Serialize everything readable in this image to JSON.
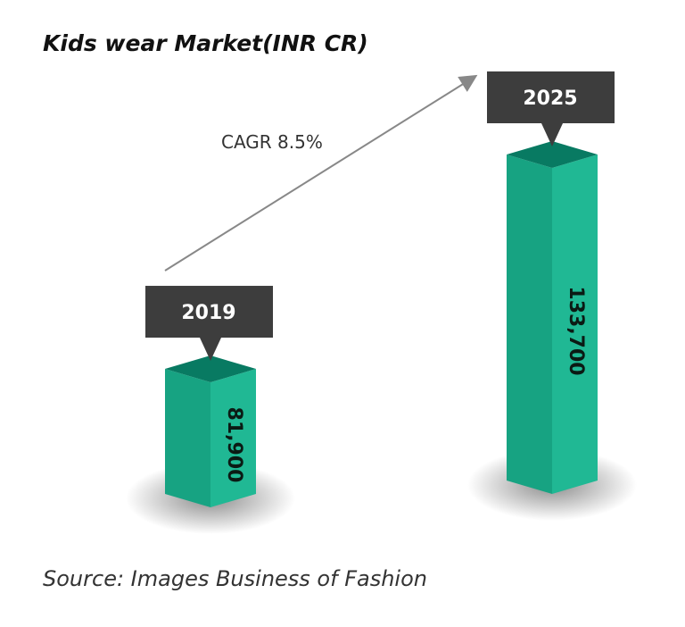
{
  "chart_data": {
    "type": "bar",
    "title": "Kids wear Market(INR CR)",
    "categories": [
      "2019",
      "2025"
    ],
    "values": [
      81900,
      133700
    ],
    "value_labels": [
      "81,900",
      "133,700"
    ],
    "annotation": "CAGR 8.5%",
    "source": "Source: Images Business of Fashion",
    "colors": {
      "bar_front_left": "#17a382",
      "bar_front_right": "#20b894",
      "bar_top": "#087a62",
      "label_box": "#3d3d3d",
      "arrow": "#888888"
    }
  }
}
